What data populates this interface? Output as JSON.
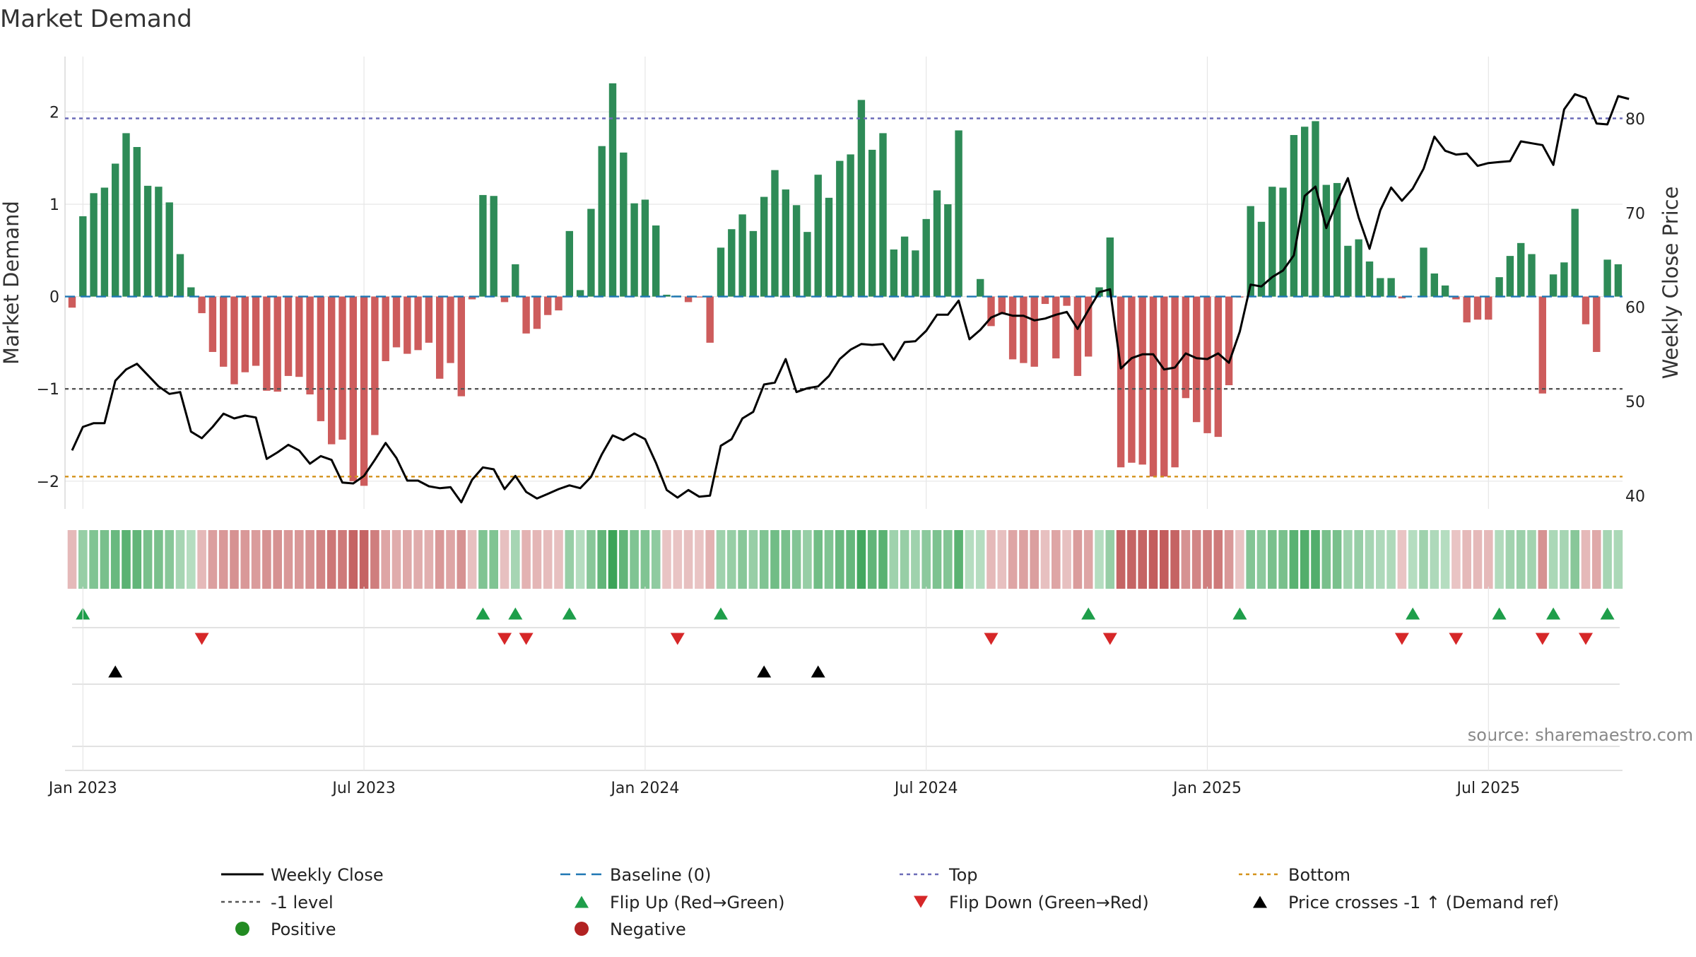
{
  "colors": {
    "positive": "#2e8b57",
    "negative": "#cd5c5c",
    "price": "#000000",
    "baseline": "#1f77b4",
    "top": "#6b6bb8",
    "bottom": "#d4921a",
    "minus1": "#555555",
    "flipUp": "#1e9e4a",
    "flipDown": "#d62728",
    "cross": "#000000",
    "dotPos": "#228b22",
    "dotNeg": "#b22222",
    "grid": "#e6e6e6"
  },
  "chart_data": {
    "type": "bar",
    "title": "Market Demand",
    "ylabel": "Market Demand",
    "y2label": "Weekly Close Price",
    "ylim": [
      -2.3,
      2.6
    ],
    "y2lim": [
      38.6,
      86.6
    ],
    "yticks": [
      2,
      1,
      0,
      -1,
      -2
    ],
    "ytick_labels": [
      "2",
      "1",
      "0",
      "−1",
      "−2"
    ],
    "y2ticks": [
      80,
      70,
      60,
      50,
      40
    ],
    "y2tick_labels": [
      "80",
      "70",
      "60",
      "50",
      "40"
    ],
    "xtick_labels": [
      "Jan 2023",
      "Jul 2023",
      "Jan 2024",
      "Jul 2024",
      "Jan 2025",
      "Jul 2025"
    ],
    "xtick_weeks": [
      0,
      26,
      52,
      78,
      104,
      130
    ],
    "start_week": -1,
    "top_level": 1.93,
    "bottom_level": -1.95,
    "minus1_level": -1.0,
    "demand": [
      -0.12,
      0.87,
      1.12,
      1.18,
      1.44,
      1.77,
      1.62,
      1.2,
      1.19,
      1.02,
      0.46,
      0.1,
      -0.18,
      -0.6,
      -0.76,
      -0.95,
      -0.82,
      -0.75,
      -1.02,
      -1.03,
      -0.86,
      -0.87,
      -1.06,
      -1.35,
      -1.6,
      -1.55,
      -2.0,
      -2.05,
      -1.5,
      -0.7,
      -0.55,
      -0.62,
      -0.58,
      -0.5,
      -0.89,
      -0.72,
      -1.08,
      -0.03,
      1.1,
      1.09,
      -0.06,
      0.35,
      -0.4,
      -0.35,
      -0.2,
      -0.15,
      0.71,
      0.07,
      0.95,
      1.63,
      2.31,
      1.56,
      1.01,
      1.05,
      0.77,
      0.02,
      0.01,
      -0.06,
      -0.01,
      -0.5,
      0.53,
      0.73,
      0.89,
      0.71,
      1.08,
      1.37,
      1.16,
      0.99,
      0.7,
      1.32,
      1.07,
      1.47,
      1.54,
      2.13,
      1.59,
      1.77,
      0.51,
      0.65,
      0.5,
      0.84,
      1.15,
      1.0,
      1.8,
      0.0,
      0.19,
      -0.32,
      -0.18,
      -0.68,
      -0.72,
      -0.76,
      -0.08,
      -0.67,
      -0.1,
      -0.86,
      -0.65,
      0.1,
      0.64,
      -1.85,
      -1.8,
      -1.82,
      -1.95,
      -1.95,
      -1.85,
      -1.1,
      -1.36,
      -1.48,
      -1.52,
      -0.96,
      -0.01,
      0.98,
      0.81,
      1.19,
      1.18,
      1.75,
      1.84,
      1.9,
      1.21,
      1.23,
      0.55,
      0.62,
      0.38,
      0.2,
      0.2,
      -0.02,
      0.0,
      0.53,
      0.25,
      0.12,
      -0.03,
      -0.28,
      -0.25,
      -0.25,
      0.21,
      0.44,
      0.58,
      0.46,
      -1.05,
      0.24,
      0.37,
      0.95,
      -0.3,
      -0.6,
      0.4,
      0.35
    ],
    "price": [
      44.8,
      47.3,
      47.7,
      47.7,
      52.2,
      53.4,
      54.0,
      52.8,
      51.6,
      50.8,
      51.0,
      46.8,
      46.1,
      47.3,
      48.7,
      48.2,
      48.5,
      48.3,
      43.9,
      44.6,
      45.4,
      44.8,
      43.4,
      44.2,
      43.8,
      41.4,
      41.3,
      42.1,
      43.8,
      45.6,
      44.0,
      41.6,
      41.6,
      41.0,
      40.8,
      40.9,
      39.3,
      41.7,
      43.0,
      42.8,
      40.7,
      42.1,
      40.4,
      39.7,
      40.2,
      40.7,
      41.1,
      40.8,
      42.0,
      44.4,
      46.4,
      45.9,
      46.6,
      46.0,
      43.5,
      40.6,
      39.8,
      40.6,
      39.9,
      40.0,
      45.3,
      46.0,
      48.2,
      48.9,
      51.8,
      52.0,
      54.5,
      51.0,
      51.4,
      51.6,
      52.7,
      54.5,
      55.5,
      56.1,
      56.0,
      56.1,
      54.4,
      56.3,
      56.4,
      57.5,
      59.2,
      59.2,
      60.7,
      56.6,
      57.6,
      58.9,
      59.4,
      59.1,
      59.1,
      58.6,
      58.8,
      59.2,
      59.5,
      57.7,
      59.7,
      61.6,
      61.9,
      53.5,
      54.6,
      55.0,
      55.0,
      53.4,
      53.6,
      55.1,
      54.6,
      54.5,
      55.1,
      54.1,
      57.4,
      62.4,
      62.2,
      63.2,
      63.9,
      65.5,
      71.8,
      72.8,
      68.4,
      71.2,
      73.7,
      69.5,
      66.2,
      70.3,
      72.7,
      71.3,
      72.6,
      74.7,
      78.1,
      76.6,
      76.2,
      76.3,
      75.0,
      75.3,
      75.4,
      75.5,
      77.6,
      77.4,
      77.2,
      75.1,
      81.0,
      82.6,
      82.2,
      79.5,
      79.4,
      82.4,
      82.1
    ],
    "heat_strip": [
      -0.2,
      0.35,
      0.5,
      0.55,
      0.65,
      0.75,
      0.7,
      0.55,
      0.55,
      0.45,
      0.25,
      0.15,
      -0.2,
      -0.4,
      -0.45,
      -0.5,
      -0.45,
      -0.42,
      -0.5,
      -0.5,
      -0.45,
      -0.45,
      -0.5,
      -0.6,
      -0.7,
      -0.68,
      -0.85,
      -0.85,
      -0.65,
      -0.35,
      -0.3,
      -0.32,
      -0.3,
      -0.28,
      -0.45,
      -0.35,
      -0.5,
      -0.15,
      0.5,
      0.5,
      -0.15,
      0.25,
      -0.25,
      -0.22,
      -0.18,
      -0.15,
      0.35,
      0.15,
      0.45,
      0.7,
      0.95,
      0.7,
      0.5,
      0.5,
      0.4,
      -0.12,
      -0.12,
      -0.15,
      -0.12,
      -0.25,
      0.3,
      0.35,
      0.45,
      0.35,
      0.5,
      0.6,
      0.55,
      0.48,
      0.35,
      0.6,
      0.5,
      0.65,
      0.68,
      0.9,
      0.7,
      0.75,
      0.3,
      0.35,
      0.3,
      0.42,
      0.52,
      0.48,
      0.75,
      0.15,
      0.15,
      -0.2,
      -0.15,
      -0.35,
      -0.38,
      -0.4,
      -0.15,
      -0.35,
      -0.15,
      -0.42,
      -0.35,
      0.15,
      0.35,
      -0.85,
      -0.85,
      -0.85,
      -0.9,
      -0.9,
      -0.85,
      -0.5,
      -0.6,
      -0.65,
      -0.68,
      -0.45,
      -0.12,
      0.48,
      0.42,
      0.55,
      0.55,
      0.75,
      0.8,
      0.8,
      0.55,
      0.55,
      0.3,
      0.35,
      0.25,
      0.2,
      0.2,
      -0.12,
      0.15,
      0.3,
      0.2,
      0.15,
      -0.12,
      -0.2,
      -0.2,
      -0.2,
      0.18,
      0.28,
      0.32,
      0.28,
      -0.5,
      0.22,
      0.25,
      0.45,
      -0.2,
      -0.32,
      0.25,
      0.22
    ],
    "flip_up_weeks": [
      0,
      37,
      40,
      45,
      59,
      93,
      107,
      123,
      131,
      136,
      141
    ],
    "flip_down_weeks": [
      11,
      39,
      41,
      55,
      84,
      95,
      122,
      127,
      135,
      139
    ],
    "price_cross_weeks": [
      3,
      63,
      68
    ],
    "source": "source: sharemaestro.com",
    "legend": [
      {
        "label": "Weekly Close",
        "symbol": "line"
      },
      {
        "label": "Baseline (0)",
        "symbol": "baseline"
      },
      {
        "label": "Top",
        "symbol": "top"
      },
      {
        "label": "Bottom",
        "symbol": "bottom"
      },
      {
        "label": "-1 level",
        "symbol": "minus1"
      },
      {
        "label": "Flip Up (Red→Green)",
        "symbol": "flipup"
      },
      {
        "label": "Flip Down (Green→Red)",
        "symbol": "flipdown"
      },
      {
        "label": "Price crosses -1 ↑ (Demand ref)",
        "symbol": "cross"
      },
      {
        "label": "Positive",
        "symbol": "dotpos"
      },
      {
        "label": "Negative",
        "symbol": "dotneg"
      }
    ]
  }
}
